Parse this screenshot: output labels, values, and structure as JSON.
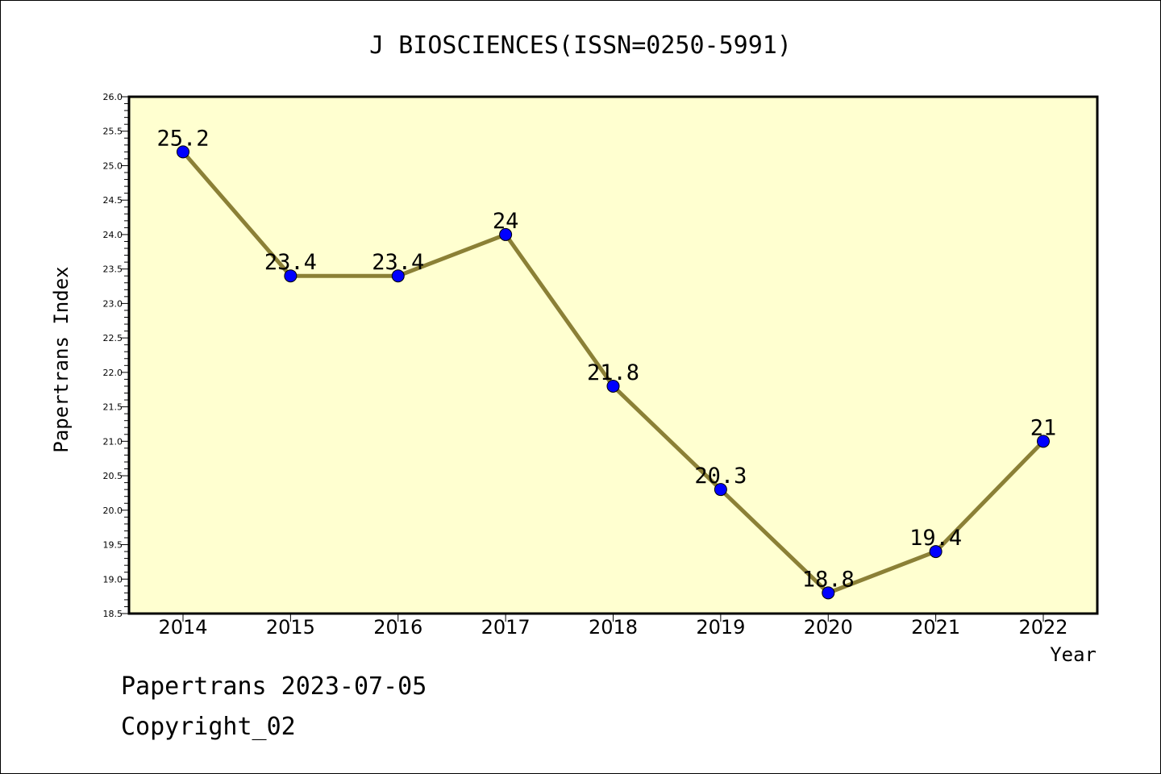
{
  "chart_data": {
    "type": "line",
    "title": "J BIOSCIENCES(ISSN=0250-5991)",
    "xlabel": "Year",
    "ylabel": "Papertrans Index",
    "categories": [
      "2014",
      "2015",
      "2016",
      "2017",
      "2018",
      "2019",
      "2020",
      "2021",
      "2022"
    ],
    "values": [
      25.2,
      23.4,
      23.4,
      24,
      21.8,
      20.3,
      18.8,
      19.4,
      21
    ],
    "data_labels": [
      "25.2",
      "23.4",
      "23.4",
      "24",
      "21.8",
      "20.3",
      "18.8",
      "19.4",
      "21"
    ],
    "ylim": [
      18.5,
      26.0
    ],
    "yticks": [
      "18.5",
      "19.0",
      "19.5",
      "20.0",
      "20.5",
      "21.0",
      "21.5",
      "22.0",
      "22.5",
      "23.0",
      "23.5",
      "24.0",
      "24.5",
      "25.0",
      "25.5",
      "26.0"
    ],
    "grid": false,
    "colors": {
      "plot_background": "#ffffd0",
      "line": "#8b8036",
      "marker": "#0000ff"
    }
  },
  "footer": {
    "line1": "Papertrans 2023-07-05",
    "line2": "Copyright_02"
  }
}
